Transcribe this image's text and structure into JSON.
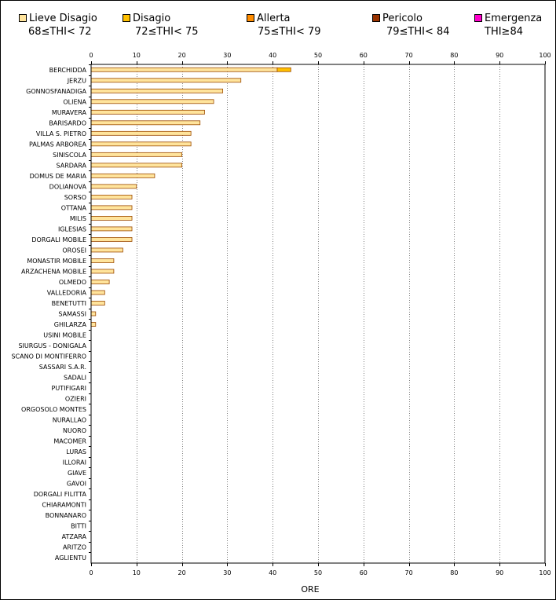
{
  "legend": [
    {
      "label": "Lieve Disagio",
      "range": "68≤THI< 72",
      "color": "#FFE49C"
    },
    {
      "label": "Disagio",
      "range": "72≤THI< 75",
      "color": "#FFC000"
    },
    {
      "label": "Allerta",
      "range": "75≤THI< 79",
      "color": "#FF8C00"
    },
    {
      "label": "Pericolo",
      "range": "79≤THI< 84",
      "color": "#993300"
    },
    {
      "label": "Emergenza",
      "range": "THI≥84",
      "color": "#FF00CC"
    }
  ],
  "chart_data": {
    "type": "bar",
    "orientation": "horizontal",
    "stacked": true,
    "xlabel": "ORE",
    "xlim": [
      0,
      100
    ],
    "xticks": [
      0,
      10,
      20,
      30,
      40,
      50,
      60,
      70,
      80,
      90,
      100
    ],
    "grid": "vertical dotted",
    "categories": [
      "BERCHIDDA",
      "JERZU",
      "GONNOSFANADIGA",
      "OLIENA",
      "MURAVERA",
      "BARISARDO",
      "VILLA S. PIETRO",
      "PALMAS ARBOREA",
      "SINISCOLA",
      "SARDARA",
      "DOMUS DE MARIA",
      "DOLIANOVA",
      "SORSO",
      "OTTANA",
      "MILIS",
      "IGLESIAS",
      "DORGALI MOBILE",
      "OROSEI",
      "MONASTIR MOBILE",
      "ARZACHENA MOBILE",
      "OLMEDO",
      "VALLEDORIA",
      "BENETUTTI",
      "SAMASSI",
      "GHILARZA",
      "USINI MOBILE",
      "SIURGUS - DONIGALA",
      "SCANO DI MONTIFERRO",
      "SASSARI S.A.R.",
      "SADALI",
      "PUTIFIGARI",
      "OZIERI",
      "ORGOSOLO MONTES",
      "NURALLAO",
      "NUORO",
      "MACOMER",
      "LURAS",
      "ILLORAI",
      "GIAVE",
      "GAVOI",
      "DORGALI FILITTA",
      "CHIARAMONTI",
      "BONNANARO",
      "BITTI",
      "ATZARA",
      "ARITZO",
      "AGLIENTU"
    ],
    "series": [
      {
        "name": "Lieve Disagio",
        "color": "#FFE49C",
        "values": [
          41,
          33,
          29,
          27,
          25,
          24,
          22,
          22,
          20,
          20,
          14,
          10,
          9,
          9,
          9,
          9,
          9,
          7,
          5,
          5,
          4,
          3,
          3,
          1,
          1,
          0,
          0,
          0,
          0,
          0,
          0,
          0,
          0,
          0,
          0,
          0,
          0,
          0,
          0,
          0,
          0,
          0,
          0,
          0,
          0,
          0,
          0
        ]
      },
      {
        "name": "Disagio",
        "color": "#FFC000",
        "values": [
          3,
          0,
          0,
          0,
          0,
          0,
          0,
          0,
          0,
          0,
          0,
          0,
          0,
          0,
          0,
          0,
          0,
          0,
          0,
          0,
          0,
          0,
          0,
          0,
          0,
          0,
          0,
          0,
          0,
          0,
          0,
          0,
          0,
          0,
          0,
          0,
          0,
          0,
          0,
          0,
          0,
          0,
          0,
          0,
          0,
          0,
          0
        ]
      },
      {
        "name": "Allerta",
        "color": "#FF8C00",
        "values": [
          0,
          0,
          0,
          0,
          0,
          0,
          0,
          0,
          0,
          0,
          0,
          0,
          0,
          0,
          0,
          0,
          0,
          0,
          0,
          0,
          0,
          0,
          0,
          0,
          0,
          0,
          0,
          0,
          0,
          0,
          0,
          0,
          0,
          0,
          0,
          0,
          0,
          0,
          0,
          0,
          0,
          0,
          0,
          0,
          0,
          0,
          0
        ]
      },
      {
        "name": "Pericolo",
        "color": "#993300",
        "values": [
          0,
          0,
          0,
          0,
          0,
          0,
          0,
          0,
          0,
          0,
          0,
          0,
          0,
          0,
          0,
          0,
          0,
          0,
          0,
          0,
          0,
          0,
          0,
          0,
          0,
          0,
          0,
          0,
          0,
          0,
          0,
          0,
          0,
          0,
          0,
          0,
          0,
          0,
          0,
          0,
          0,
          0,
          0,
          0,
          0,
          0,
          0
        ]
      },
      {
        "name": "Emergenza",
        "color": "#FF00CC",
        "values": [
          0,
          0,
          0,
          0,
          0,
          0,
          0,
          0,
          0,
          0,
          0,
          0,
          0,
          0,
          0,
          0,
          0,
          0,
          0,
          0,
          0,
          0,
          0,
          0,
          0,
          0,
          0,
          0,
          0,
          0,
          0,
          0,
          0,
          0,
          0,
          0,
          0,
          0,
          0,
          0,
          0,
          0,
          0,
          0,
          0,
          0,
          0
        ]
      }
    ]
  }
}
